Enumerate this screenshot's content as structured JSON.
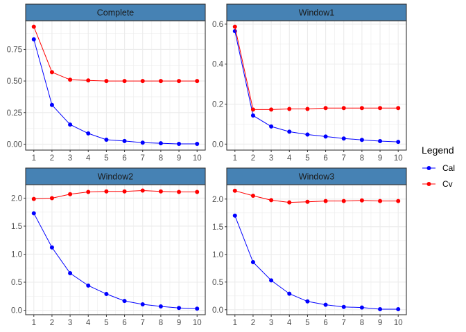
{
  "chart_data": {
    "type": "line",
    "layout": "facet-grid-2x2",
    "grid": true,
    "legend": {
      "title": "Legend",
      "placement": "right"
    },
    "strip_color": "#4682b4",
    "series_styles": [
      {
        "name": "Cal",
        "color": "#0000ff"
      },
      {
        "name": "Cv",
        "color": "#ff0000"
      }
    ],
    "x": [
      1,
      2,
      3,
      4,
      5,
      6,
      7,
      8,
      9,
      10
    ],
    "x_tick_labels": [
      "1",
      "2",
      "3",
      "4",
      "5",
      "6",
      "7",
      "8",
      "9",
      "10"
    ],
    "xlim": [
      0.55,
      10.45
    ],
    "facets": [
      {
        "title": "Complete",
        "ylim": [
          -0.047,
          0.977
        ],
        "y_ticks": [
          0,
          0.25,
          0.5,
          0.75
        ],
        "y_tick_labels": [
          "0.00",
          "0.25",
          "0.50",
          "0.75"
        ],
        "series": [
          {
            "name": "Cal",
            "values": [
              0.83,
              0.31,
              0.155,
              0.085,
              0.035,
              0.025,
              0.012,
              0.007,
              0.002,
              0.002
            ]
          },
          {
            "name": "Cv",
            "values": [
              0.93,
              0.57,
              0.51,
              0.505,
              0.5,
              0.5,
              0.5,
              0.5,
              0.5,
              0.5
            ]
          }
        ]
      },
      {
        "title": "Window1",
        "ylim": [
          -0.03,
          0.617
        ],
        "y_ticks": [
          0,
          0.2,
          0.4,
          0.6
        ],
        "y_tick_labels": [
          "0.0",
          "0.2",
          "0.4",
          "0.6"
        ],
        "series": [
          {
            "name": "Cal",
            "values": [
              0.565,
              0.143,
              0.088,
              0.062,
              0.048,
              0.038,
              0.028,
              0.021,
              0.015,
              0.011
            ]
          },
          {
            "name": "Cv",
            "values": [
              0.587,
              0.173,
              0.173,
              0.176,
              0.176,
              0.18,
              0.18,
              0.18,
              0.18,
              0.18
            ]
          }
        ]
      },
      {
        "title": "Window2",
        "ylim": [
          -0.08,
          2.24
        ],
        "y_ticks": [
          0,
          0.5,
          1,
          1.5,
          2
        ],
        "y_tick_labels": [
          "0.0",
          "0.5",
          "1.0",
          "1.5",
          "2.0"
        ],
        "series": [
          {
            "name": "Cal",
            "values": [
              1.73,
              1.12,
              0.66,
              0.44,
              0.29,
              0.165,
              0.105,
              0.068,
              0.04,
              0.028
            ]
          },
          {
            "name": "Cv",
            "values": [
              1.985,
              2.0,
              2.07,
              2.11,
              2.12,
              2.12,
              2.135,
              2.12,
              2.11,
              2.11
            ]
          }
        ]
      },
      {
        "title": "Window3",
        "ylim": [
          -0.09,
          2.26
        ],
        "y_ticks": [
          0,
          0.5,
          1,
          1.5,
          2
        ],
        "y_tick_labels": [
          "0.0",
          "0.5",
          "1.0",
          "1.5",
          "2.0"
        ],
        "series": [
          {
            "name": "Cal",
            "values": [
              1.7,
              0.86,
              0.53,
              0.29,
              0.15,
              0.09,
              0.05,
              0.04,
              0.01,
              0.01
            ]
          },
          {
            "name": "Cv",
            "values": [
              2.15,
              2.06,
              1.98,
              1.94,
              1.95,
              1.965,
              1.965,
              1.975,
              1.965,
              1.965
            ]
          }
        ]
      }
    ]
  }
}
